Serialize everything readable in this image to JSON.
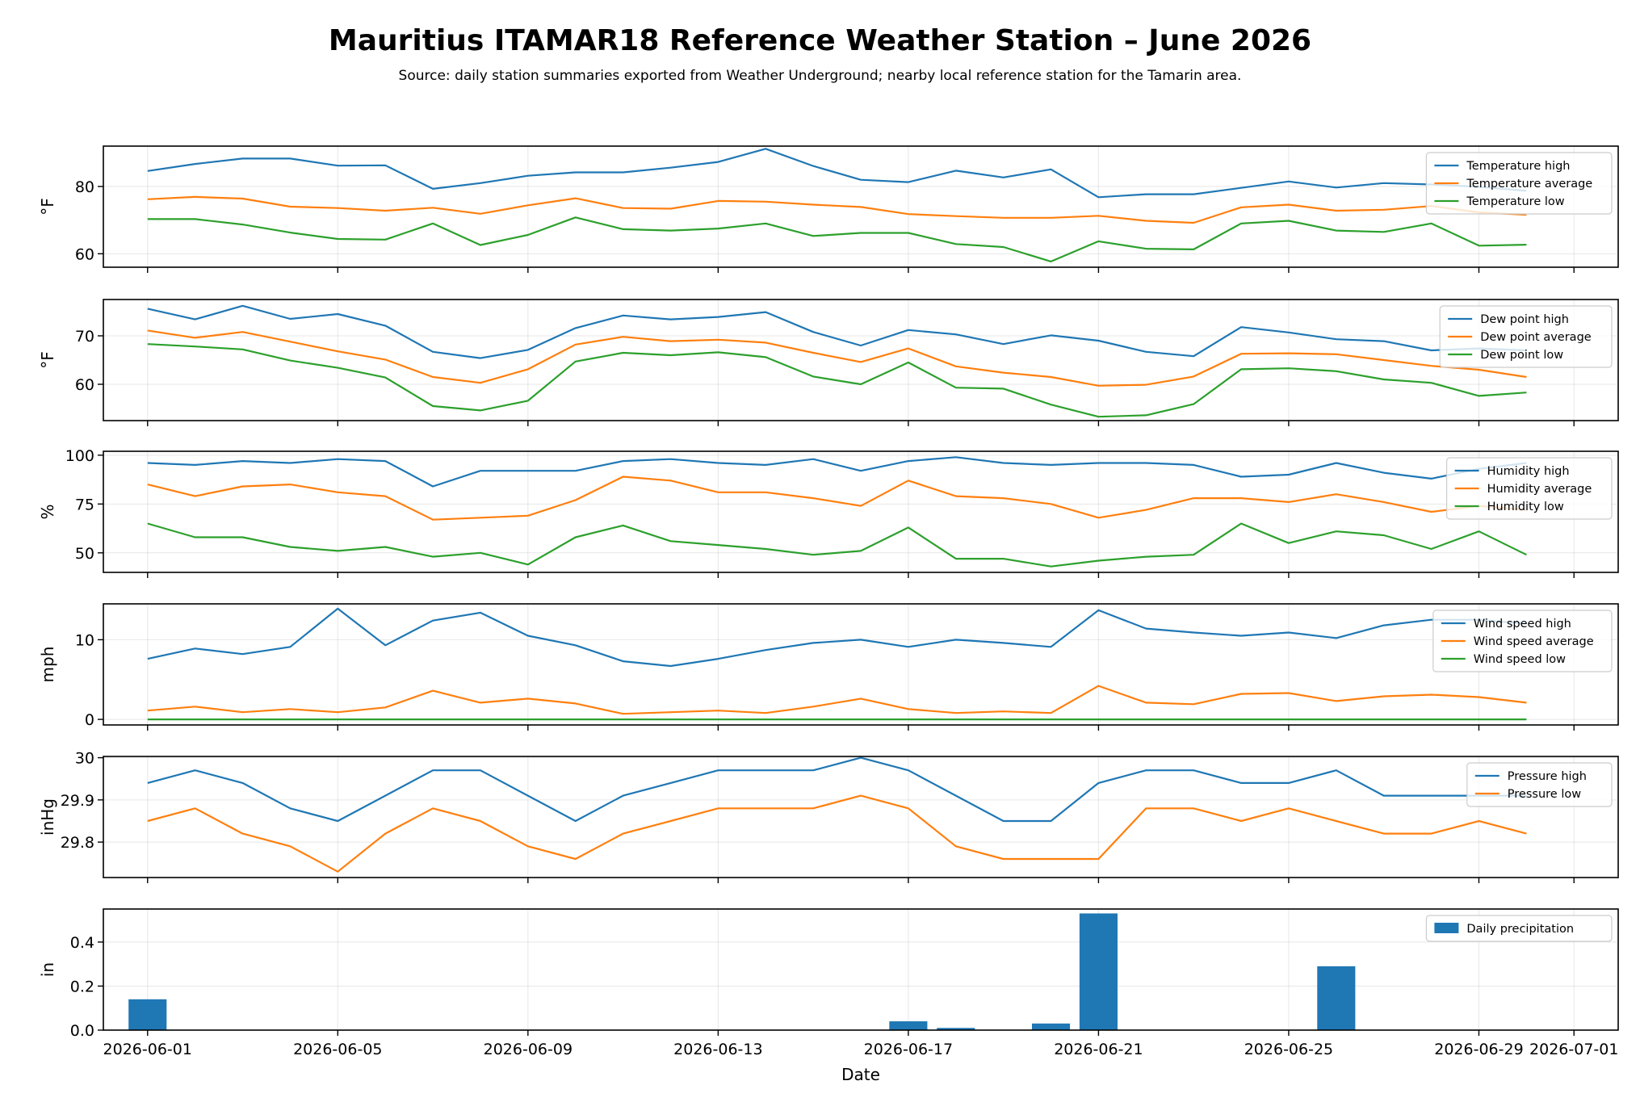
{
  "title": "Mauritius ITAMAR18 Reference Weather Station – June 2026",
  "subtitle": "Source: daily station summaries exported from Weather Underground; nearby local reference station for the Tamarin area.",
  "colors": {
    "high": "#1f77b4",
    "average": "#ff7f0e",
    "low": "#2ca02c",
    "bar": "#1f77b4"
  },
  "chart_data": [
    {
      "type": "line",
      "ylabel": "°F",
      "ylim": [
        56,
        92
      ],
      "yticks": [
        60,
        80
      ],
      "legend_position": "top-right",
      "grid": true,
      "x": [
        "2026-06-01",
        "2026-06-02",
        "2026-06-03",
        "2026-06-04",
        "2026-06-05",
        "2026-06-06",
        "2026-06-07",
        "2026-06-08",
        "2026-06-09",
        "2026-06-10",
        "2026-06-11",
        "2026-06-12",
        "2026-06-13",
        "2026-06-14",
        "2026-06-15",
        "2026-06-16",
        "2026-06-17",
        "2026-06-18",
        "2026-06-19",
        "2026-06-20",
        "2026-06-21",
        "2026-06-22",
        "2026-06-23",
        "2026-06-24",
        "2026-06-25",
        "2026-06-26",
        "2026-06-27",
        "2026-06-28",
        "2026-06-29",
        "2026-06-30"
      ],
      "series": [
        {
          "name": "Temperature high",
          "values": [
            84.6,
            86.7,
            88.3,
            88.3,
            86.2,
            86.3,
            79.3,
            81.0,
            83.2,
            84.2,
            84.2,
            85.6,
            87.3,
            91.2,
            86.1,
            82.0,
            81.3,
            84.7,
            82.7,
            85.1,
            76.8,
            77.7,
            77.7,
            79.6,
            81.5,
            79.7,
            81.0,
            80.6,
            79.9,
            78.7
          ]
        },
        {
          "name": "Temperature average",
          "values": [
            76.2,
            76.9,
            76.4,
            74.0,
            73.6,
            72.8,
            73.7,
            71.9,
            74.4,
            76.5,
            73.6,
            73.4,
            75.7,
            75.5,
            74.6,
            73.9,
            71.8,
            71.2,
            70.7,
            70.7,
            71.3,
            69.8,
            69.2,
            73.8,
            74.6,
            72.8,
            73.1,
            74.2,
            72.3,
            71.6
          ]
        },
        {
          "name": "Temperature low",
          "values": [
            70.3,
            70.3,
            68.7,
            66.3,
            64.4,
            64.2,
            69.0,
            62.6,
            65.6,
            70.8,
            67.3,
            66.9,
            67.5,
            69.0,
            65.3,
            66.2,
            66.2,
            62.9,
            62.0,
            57.7,
            63.7,
            61.5,
            61.3,
            69.0,
            69.8,
            66.9,
            66.5,
            69.0,
            62.4,
            62.7
          ]
        }
      ]
    },
    {
      "type": "line",
      "ylabel": "°F",
      "ylim": [
        52.5,
        77.5
      ],
      "yticks": [
        60,
        70
      ],
      "legend_position": "top-right",
      "grid": true,
      "x": [
        "2026-06-01",
        "2026-06-02",
        "2026-06-03",
        "2026-06-04",
        "2026-06-05",
        "2026-06-06",
        "2026-06-07",
        "2026-06-08",
        "2026-06-09",
        "2026-06-10",
        "2026-06-11",
        "2026-06-12",
        "2026-06-13",
        "2026-06-14",
        "2026-06-15",
        "2026-06-16",
        "2026-06-17",
        "2026-06-18",
        "2026-06-19",
        "2026-06-20",
        "2026-06-21",
        "2026-06-22",
        "2026-06-23",
        "2026-06-24",
        "2026-06-25",
        "2026-06-26",
        "2026-06-27",
        "2026-06-28",
        "2026-06-29",
        "2026-06-30"
      ],
      "series": [
        {
          "name": "Dew point high",
          "values": [
            75.6,
            73.4,
            76.2,
            73.5,
            74.5,
            72.1,
            66.7,
            65.4,
            67.1,
            71.6,
            74.2,
            73.4,
            73.9,
            74.9,
            70.8,
            68.0,
            71.2,
            70.3,
            68.3,
            70.1,
            69.0,
            66.7,
            65.8,
            71.8,
            70.7,
            69.3,
            68.9,
            67.0,
            67.4,
            67.0
          ]
        },
        {
          "name": "Dew point average",
          "values": [
            71.1,
            69.6,
            70.8,
            68.8,
            66.8,
            65.1,
            61.5,
            60.3,
            63.1,
            68.2,
            69.8,
            68.9,
            69.2,
            68.6,
            66.5,
            64.6,
            67.4,
            63.7,
            62.4,
            61.5,
            59.7,
            59.9,
            61.6,
            66.3,
            66.4,
            66.2,
            65.0,
            63.8,
            63.0,
            61.5
          ]
        },
        {
          "name": "Dew point low",
          "values": [
            68.3,
            67.8,
            67.2,
            64.9,
            63.4,
            61.4,
            55.5,
            54.6,
            56.6,
            64.7,
            66.5,
            66.0,
            66.6,
            65.6,
            61.6,
            60.0,
            64.5,
            59.3,
            59.1,
            55.8,
            53.3,
            53.6,
            55.9,
            63.1,
            63.3,
            62.7,
            61.0,
            60.3,
            57.6,
            58.3
          ]
        }
      ]
    },
    {
      "type": "line",
      "ylabel": "%",
      "ylim": [
        40,
        102
      ],
      "yticks": [
        50,
        75,
        100
      ],
      "legend_position": "top-right",
      "grid": true,
      "x": [
        "2026-06-01",
        "2026-06-02",
        "2026-06-03",
        "2026-06-04",
        "2026-06-05",
        "2026-06-06",
        "2026-06-07",
        "2026-06-08",
        "2026-06-09",
        "2026-06-10",
        "2026-06-11",
        "2026-06-12",
        "2026-06-13",
        "2026-06-14",
        "2026-06-15",
        "2026-06-16",
        "2026-06-17",
        "2026-06-18",
        "2026-06-19",
        "2026-06-20",
        "2026-06-21",
        "2026-06-22",
        "2026-06-23",
        "2026-06-24",
        "2026-06-25",
        "2026-06-26",
        "2026-06-27",
        "2026-06-28",
        "2026-06-29",
        "2026-06-30"
      ],
      "series": [
        {
          "name": "Humidity high",
          "values": [
            96,
            95,
            97,
            96,
            98,
            97,
            84,
            92,
            92,
            92,
            97,
            98,
            96,
            95,
            98,
            92,
            97,
            99,
            96,
            95,
            96,
            96,
            95,
            89,
            90,
            96,
            91,
            88,
            93,
            96
          ]
        },
        {
          "name": "Humidity average",
          "values": [
            85,
            79,
            84,
            85,
            81,
            79,
            67,
            68,
            69,
            77,
            89,
            87,
            81,
            81,
            78,
            74,
            87,
            79,
            78,
            75,
            68,
            72,
            78,
            78,
            76,
            80,
            76,
            71,
            74,
            72
          ]
        },
        {
          "name": "Humidity low",
          "values": [
            65,
            58,
            58,
            53,
            51,
            53,
            48,
            50,
            44,
            58,
            64,
            56,
            54,
            52,
            49,
            51,
            63,
            47,
            47,
            43,
            46,
            48,
            49,
            65,
            55,
            61,
            59,
            52,
            61,
            49
          ]
        }
      ]
    },
    {
      "type": "line",
      "ylabel": "mph",
      "ylim": [
        -0.7,
        14.5
      ],
      "yticks": [
        0,
        10
      ],
      "legend_position": "top-right",
      "grid": true,
      "x": [
        "2026-06-01",
        "2026-06-02",
        "2026-06-03",
        "2026-06-04",
        "2026-06-05",
        "2026-06-06",
        "2026-06-07",
        "2026-06-08",
        "2026-06-09",
        "2026-06-10",
        "2026-06-11",
        "2026-06-12",
        "2026-06-13",
        "2026-06-14",
        "2026-06-15",
        "2026-06-16",
        "2026-06-17",
        "2026-06-18",
        "2026-06-19",
        "2026-06-20",
        "2026-06-21",
        "2026-06-22",
        "2026-06-23",
        "2026-06-24",
        "2026-06-25",
        "2026-06-26",
        "2026-06-27",
        "2026-06-28",
        "2026-06-29",
        "2026-06-30"
      ],
      "series": [
        {
          "name": "Wind speed high",
          "values": [
            7.6,
            8.9,
            8.2,
            9.1,
            13.9,
            9.3,
            12.4,
            13.4,
            10.5,
            9.3,
            7.3,
            6.7,
            7.6,
            8.7,
            9.6,
            10.0,
            9.1,
            10.0,
            9.6,
            9.1,
            13.7,
            11.4,
            10.9,
            10.5,
            10.9,
            10.2,
            11.8,
            12.5,
            12.5,
            12.0
          ]
        },
        {
          "name": "Wind speed average",
          "values": [
            1.1,
            1.6,
            0.9,
            1.3,
            0.9,
            1.5,
            3.6,
            2.1,
            2.6,
            2.0,
            0.7,
            0.9,
            1.1,
            0.8,
            1.6,
            2.6,
            1.3,
            0.8,
            1.0,
            0.8,
            4.2,
            2.1,
            1.9,
            3.2,
            3.3,
            2.3,
            2.9,
            3.1,
            2.8,
            2.1
          ]
        },
        {
          "name": "Wind speed low",
          "values": [
            0,
            0,
            0,
            0,
            0,
            0,
            0,
            0,
            0,
            0,
            0,
            0,
            0,
            0,
            0,
            0,
            0,
            0,
            0,
            0,
            0,
            0,
            0,
            0,
            0,
            0,
            0,
            0,
            0,
            0
          ]
        }
      ]
    },
    {
      "type": "line",
      "ylabel": "inHg",
      "ylim": [
        29.716,
        30.003
      ],
      "yticks": [
        29.8,
        29.9,
        30.0
      ],
      "legend_position": "top-right",
      "grid": true,
      "x": [
        "2026-06-01",
        "2026-06-02",
        "2026-06-03",
        "2026-06-04",
        "2026-06-05",
        "2026-06-06",
        "2026-06-07",
        "2026-06-08",
        "2026-06-09",
        "2026-06-10",
        "2026-06-11",
        "2026-06-12",
        "2026-06-13",
        "2026-06-14",
        "2026-06-15",
        "2026-06-16",
        "2026-06-17",
        "2026-06-18",
        "2026-06-19",
        "2026-06-20",
        "2026-06-21",
        "2026-06-22",
        "2026-06-23",
        "2026-06-24",
        "2026-06-25",
        "2026-06-26",
        "2026-06-27",
        "2026-06-28",
        "2026-06-29",
        "2026-06-30"
      ],
      "series": [
        {
          "name": "Pressure high",
          "values": [
            29.94,
            29.97,
            29.94,
            29.88,
            29.85,
            29.91,
            29.97,
            29.97,
            29.91,
            29.85,
            29.91,
            29.94,
            29.97,
            29.97,
            29.97,
            30.0,
            29.97,
            29.91,
            29.85,
            29.85,
            29.94,
            29.97,
            29.97,
            29.94,
            29.94,
            29.97,
            29.91,
            29.91,
            29.91,
            29.91
          ]
        },
        {
          "name": "Pressure low",
          "values": [
            29.85,
            29.88,
            29.82,
            29.79,
            29.73,
            29.82,
            29.88,
            29.85,
            29.79,
            29.76,
            29.82,
            29.85,
            29.88,
            29.88,
            29.88,
            29.91,
            29.88,
            29.79,
            29.76,
            29.76,
            29.76,
            29.88,
            29.88,
            29.85,
            29.88,
            29.85,
            29.82,
            29.82,
            29.85,
            29.82
          ]
        }
      ]
    },
    {
      "type": "bar",
      "ylabel": "in",
      "xlabel": "Date",
      "ylim": [
        0,
        0.55
      ],
      "yticks": [
        0.0,
        0.2,
        0.4
      ],
      "tick_labels": [
        "0.0",
        "0.2",
        "0.4"
      ],
      "legend_position": "top-right",
      "grid": true,
      "x": [
        "2026-06-01",
        "2026-06-02",
        "2026-06-03",
        "2026-06-04",
        "2026-06-05",
        "2026-06-06",
        "2026-06-07",
        "2026-06-08",
        "2026-06-09",
        "2026-06-10",
        "2026-06-11",
        "2026-06-12",
        "2026-06-13",
        "2026-06-14",
        "2026-06-15",
        "2026-06-16",
        "2026-06-17",
        "2026-06-18",
        "2026-06-19",
        "2026-06-20",
        "2026-06-21",
        "2026-06-22",
        "2026-06-23",
        "2026-06-24",
        "2026-06-25",
        "2026-06-26",
        "2026-06-27",
        "2026-06-28",
        "2026-06-29",
        "2026-06-30"
      ],
      "series": [
        {
          "name": "Daily precipitation",
          "values": [
            0.14,
            0,
            0,
            0,
            0,
            0,
            0,
            0,
            0,
            0,
            0,
            0,
            0,
            0,
            0,
            0,
            0.04,
            0.01,
            0,
            0.03,
            0.53,
            0,
            0,
            0,
            0,
            0.29,
            0,
            0,
            0,
            0
          ]
        }
      ],
      "xticks": [
        "2026-06-01",
        "2026-06-05",
        "2026-06-09",
        "2026-06-13",
        "2026-06-17",
        "2026-06-21",
        "2026-06-25",
        "2026-06-29",
        "2026-07-01"
      ]
    }
  ]
}
